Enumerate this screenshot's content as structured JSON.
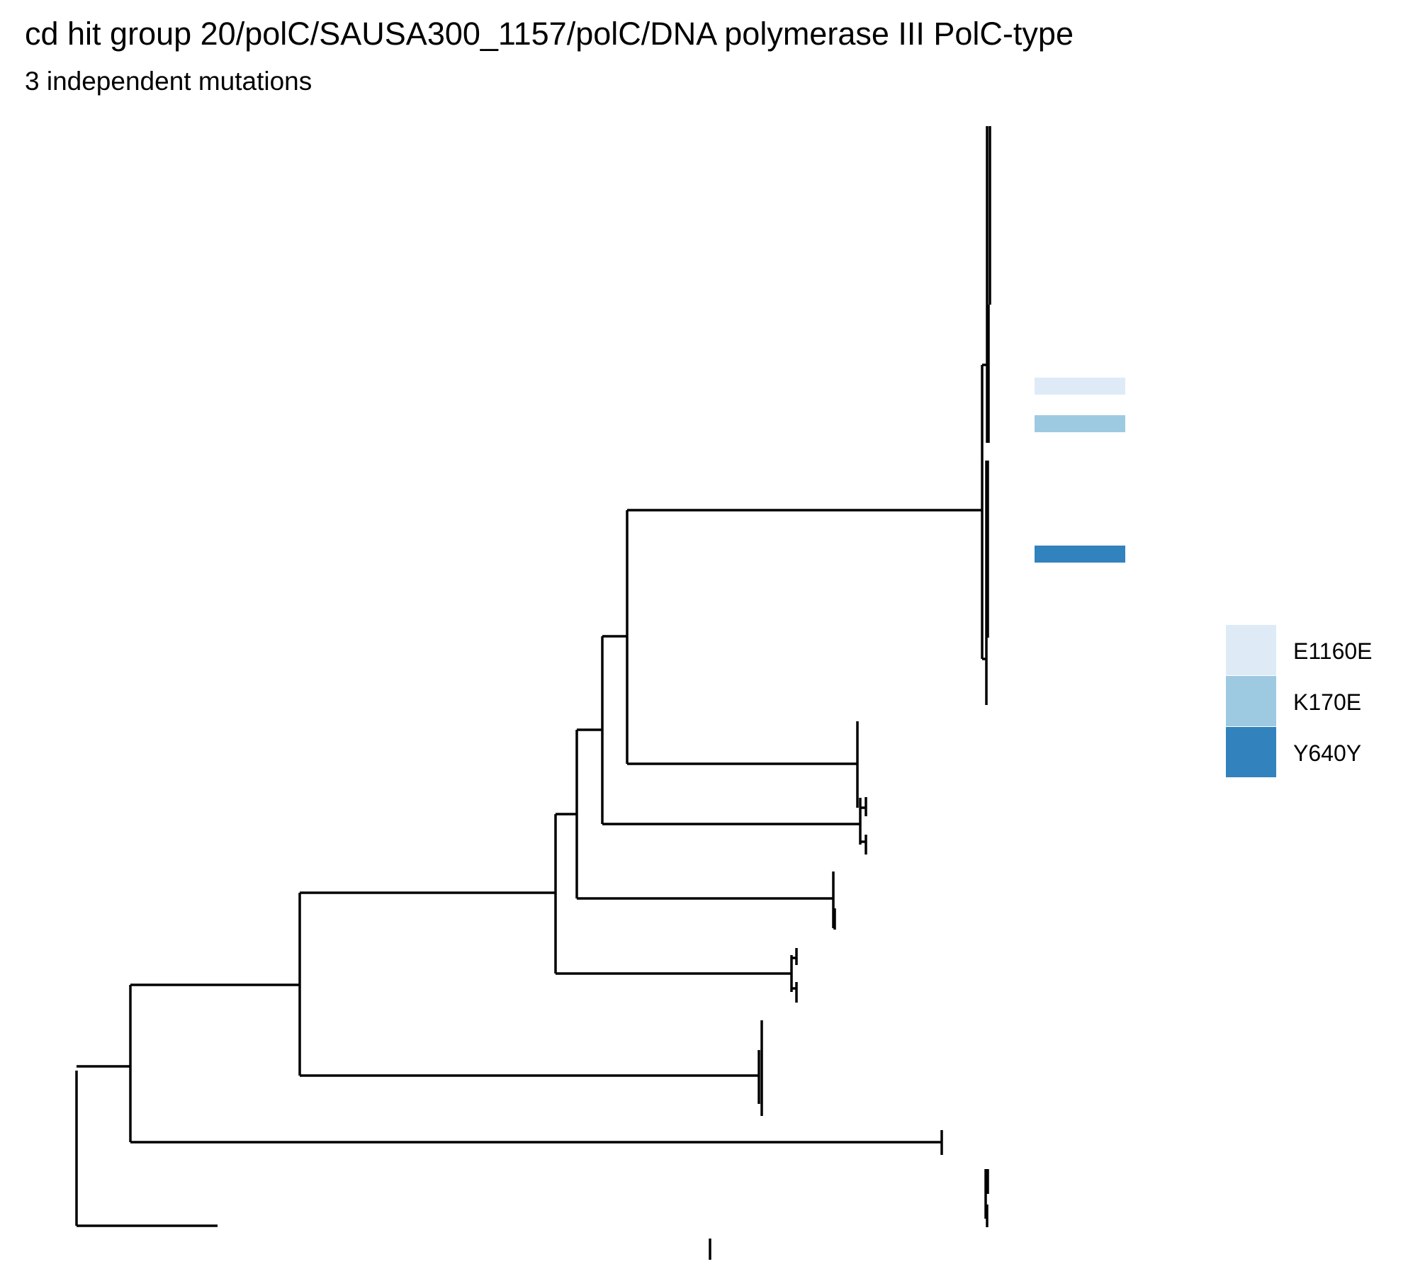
{
  "title": "cd hit group 20/polC/SAUSA300_1157/polC/DNA polymerase III PolC-type",
  "subtitle": "3 independent mutations",
  "colors": {
    "E1160E": "#deebf7",
    "K170E": "#9ecae1",
    "Y640Y": "#3182bd",
    "branch": "#000000"
  },
  "legend": {
    "items": [
      {
        "label": "E1160E",
        "color_key": "E1160E"
      },
      {
        "label": "K170E",
        "color_key": "K170E"
      },
      {
        "label": "Y640Y",
        "color_key": "Y640Y"
      }
    ]
  },
  "mutation_marks": [
    {
      "mutation": "E1160E",
      "clade": "top-clade"
    },
    {
      "mutation": "K170E",
      "clade": "top-clade"
    },
    {
      "mutation": "Y640Y",
      "clade": "top-clade"
    }
  ]
}
